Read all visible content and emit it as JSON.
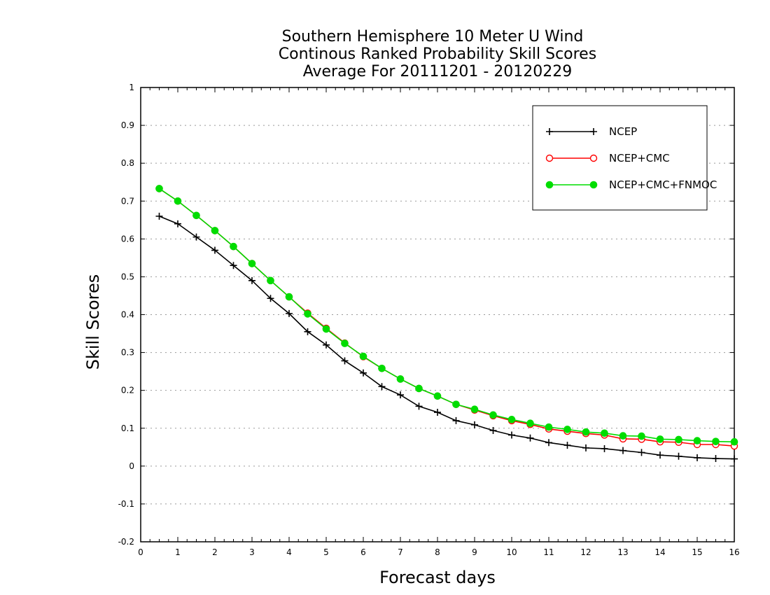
{
  "chart_data": {
    "type": "line",
    "title_lines": [
      "Southern Hemisphere 10 Meter U Wind",
      "Continous Ranked Probability Skill Scores",
      "Average For 20111201 - 20120229"
    ],
    "xlabel": "Forecast days",
    "ylabel": "Skill Scores",
    "xlim": [
      0,
      16
    ],
    "ylim": [
      -0.2,
      1
    ],
    "x_ticks": [
      0,
      1,
      2,
      3,
      4,
      5,
      6,
      7,
      8,
      9,
      10,
      11,
      12,
      13,
      14,
      15,
      16
    ],
    "x_tick_labels": [
      "0",
      "1",
      "2",
      "3",
      "4",
      "5",
      "6",
      "7",
      "8",
      "9",
      "10",
      "11",
      "12",
      "13",
      "14",
      "15",
      "16"
    ],
    "y_ticks": [
      -0.2,
      -0.1,
      0,
      0.1,
      0.2,
      0.3,
      0.4,
      0.5,
      0.6,
      0.7,
      0.8,
      0.9,
      1
    ],
    "y_tick_labels": [
      "-0.2",
      "-0.1",
      "0",
      "0.1",
      "0.2",
      "0.3",
      "0.4",
      "0.5",
      "0.6",
      "0.7",
      "0.8",
      "0.9",
      "1"
    ],
    "grid": "horizontal dotted",
    "legend_position": "top-right",
    "x": [
      0.5,
      1,
      1.5,
      2,
      2.5,
      3,
      3.5,
      4,
      4.5,
      5,
      5.5,
      6,
      6.5,
      7,
      7.5,
      8,
      8.5,
      9,
      9.5,
      10,
      10.5,
      11,
      11.5,
      12,
      12.5,
      13,
      13.5,
      14,
      14.5,
      15,
      15.5,
      16
    ],
    "series": [
      {
        "name": "NCEP",
        "color": "#000000",
        "marker": "plus",
        "values": [
          0.66,
          0.64,
          0.605,
          0.57,
          0.53,
          0.49,
          0.443,
          0.403,
          0.355,
          0.32,
          0.278,
          0.246,
          0.21,
          0.188,
          0.158,
          0.142,
          0.12,
          0.109,
          0.094,
          0.082,
          0.074,
          0.062,
          0.055,
          0.048,
          0.046,
          0.041,
          0.036,
          0.029,
          0.026,
          0.022,
          0.02,
          0.019
        ]
      },
      {
        "name": "NCEP+CMC",
        "color": "#ff0000",
        "marker": "open-circle",
        "values": [
          0.733,
          0.7,
          0.662,
          0.622,
          0.58,
          0.535,
          0.49,
          0.447,
          0.404,
          0.364,
          0.325,
          0.289,
          0.258,
          0.23,
          0.205,
          0.185,
          0.163,
          0.148,
          0.133,
          0.12,
          0.11,
          0.098,
          0.092,
          0.086,
          0.082,
          0.072,
          0.071,
          0.064,
          0.063,
          0.057,
          0.057,
          0.053
        ]
      },
      {
        "name": "NCEP+CMC+FNMOC",
        "color": "#00dd00",
        "marker": "filled-circle",
        "values": [
          0.733,
          0.7,
          0.662,
          0.622,
          0.58,
          0.535,
          0.49,
          0.447,
          0.402,
          0.362,
          0.324,
          0.29,
          0.258,
          0.23,
          0.205,
          0.185,
          0.163,
          0.15,
          0.135,
          0.123,
          0.113,
          0.103,
          0.097,
          0.09,
          0.087,
          0.08,
          0.079,
          0.071,
          0.07,
          0.067,
          0.065,
          0.064
        ]
      }
    ]
  }
}
